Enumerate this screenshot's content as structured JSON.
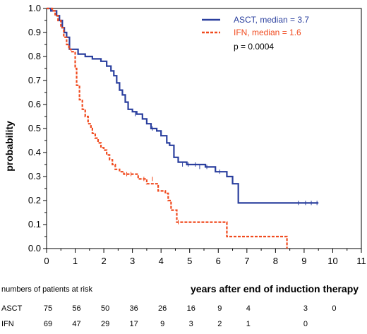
{
  "chart_data": {
    "type": "line",
    "subtype": "kaplan-meier",
    "title": "",
    "xlabel": "years after end of induction therapy",
    "ylabel": "probability",
    "xlim": [
      0,
      11
    ],
    "ylim": [
      0,
      1
    ],
    "x_ticks": [
      "0",
      "1",
      "2",
      "3",
      "4",
      "5",
      "6",
      "7",
      "8",
      "9",
      "10",
      "11"
    ],
    "y_ticks": [
      "0.0",
      "0.1",
      "0.2",
      "0.3",
      "0.4",
      "0.5",
      "0.6",
      "0.7",
      "0.8",
      "0.9",
      "1.0"
    ],
    "legend_position": "top-right",
    "annotation": "p = 0.0004",
    "series": [
      {
        "name": "ASCT, median = 3.7",
        "color": "#2a3f9e",
        "style": "solid",
        "x": [
          0,
          0.15,
          0.35,
          0.45,
          0.55,
          0.62,
          0.7,
          0.8,
          1.1,
          1.35,
          1.6,
          1.9,
          2.1,
          2.25,
          2.35,
          2.45,
          2.55,
          2.65,
          2.75,
          2.85,
          3.0,
          3.15,
          3.35,
          3.5,
          3.65,
          3.85,
          4.0,
          4.2,
          4.3,
          4.45,
          4.6,
          4.9,
          5.15,
          5.55,
          5.9,
          6.3,
          6.5,
          6.7,
          9.5
        ],
        "y": [
          1.0,
          0.99,
          0.97,
          0.95,
          0.92,
          0.9,
          0.88,
          0.83,
          0.81,
          0.8,
          0.79,
          0.78,
          0.76,
          0.74,
          0.72,
          0.69,
          0.66,
          0.64,
          0.61,
          0.58,
          0.57,
          0.56,
          0.54,
          0.52,
          0.5,
          0.49,
          0.47,
          0.44,
          0.43,
          0.38,
          0.36,
          0.35,
          0.35,
          0.34,
          0.32,
          0.3,
          0.27,
          0.19,
          0.19
        ],
        "censor_x": [
          3.1,
          3.7,
          4.75,
          4.95,
          5.2,
          5.35,
          5.6,
          6.05,
          8.8,
          9.05,
          9.25,
          9.45
        ],
        "censor_y": [
          0.56,
          0.5,
          0.35,
          0.35,
          0.35,
          0.34,
          0.34,
          0.32,
          0.19,
          0.19,
          0.19,
          0.19
        ]
      },
      {
        "name": "IFN, median = 1.6",
        "color": "#f04a1e",
        "style": "dashed",
        "x": [
          0,
          0.2,
          0.3,
          0.4,
          0.5,
          0.6,
          0.7,
          0.78,
          0.85,
          1.0,
          1.05,
          1.15,
          1.25,
          1.35,
          1.45,
          1.55,
          1.6,
          1.7,
          1.8,
          1.9,
          2.0,
          2.1,
          2.2,
          2.3,
          2.4,
          2.55,
          2.7,
          3.2,
          3.5,
          3.9,
          4.05,
          4.15,
          4.25,
          4.35,
          4.55,
          6.3,
          8.4
        ],
        "y": [
          1.0,
          0.99,
          0.97,
          0.95,
          0.92,
          0.88,
          0.85,
          0.83,
          0.82,
          0.75,
          0.68,
          0.62,
          0.58,
          0.55,
          0.52,
          0.5,
          0.48,
          0.46,
          0.44,
          0.42,
          0.41,
          0.39,
          0.37,
          0.35,
          0.33,
          0.32,
          0.31,
          0.29,
          0.27,
          0.24,
          0.24,
          0.23,
          0.2,
          0.16,
          0.11,
          0.05,
          0.0
        ],
        "censor_x": [
          2.8,
          2.95,
          3.4,
          3.7,
          4.6
        ],
        "censor_y": [
          0.31,
          0.31,
          0.29,
          0.29,
          0.11
        ]
      }
    ]
  },
  "risk_table": {
    "title": "numbers of patients at risk",
    "times": [
      0,
      1,
      2,
      3,
      4,
      5,
      6,
      7,
      9,
      10
    ],
    "rows": [
      {
        "label": "ASCT",
        "values": [
          "75",
          "56",
          "50",
          "36",
          "26",
          "16",
          "9",
          "4",
          "3",
          "0"
        ]
      },
      {
        "label": "IFN",
        "values": [
          "69",
          "47",
          "29",
          "17",
          "9",
          "3",
          "2",
          "1",
          "0",
          ""
        ]
      }
    ]
  }
}
